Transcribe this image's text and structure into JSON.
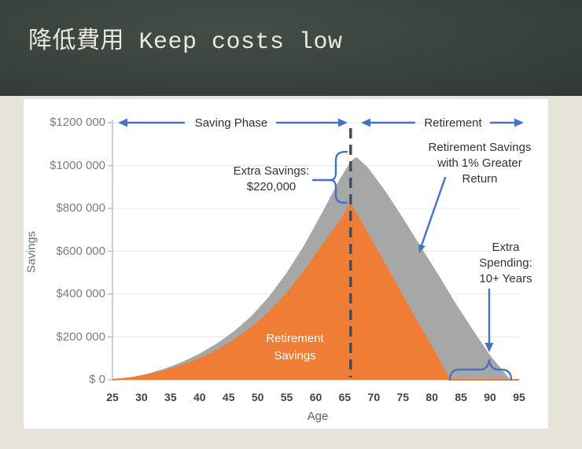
{
  "header": {
    "title": "降低費用 Keep costs low"
  },
  "colors": {
    "header_bg": "#39423C",
    "title_text": "#EBE8DC",
    "slide_bg": "#E7E5D9",
    "panel_bg": "#FFFFFF",
    "orange": "#EF7D35",
    "gray": "#A7A7A7",
    "accent_blue": "#4472C4",
    "dashed_line": "#474B52",
    "axis_blue": "#A8C3E8",
    "grid": "#E8E8E8",
    "x_axis_line": "#D8D8D8",
    "annotation_text": "#2E3338",
    "tick_text_gray": "#7C7C7C",
    "area_label_text": "#FFFFFF"
  },
  "chart_data": {
    "type": "area",
    "title": "",
    "xlabel": "Age",
    "ylabel": "Savings",
    "grid": "horizontal",
    "legend": "none",
    "x": {
      "label": "Age",
      "range": [
        25,
        95
      ],
      "ticks": [
        25,
        30,
        35,
        40,
        45,
        50,
        55,
        60,
        65,
        70,
        75,
        80,
        85,
        90,
        95
      ]
    },
    "y": {
      "label": "Savings",
      "range": [
        0,
        1200000
      ],
      "tick_labels": [
        "$1200 000",
        "$1000 000",
        "$800 000",
        "$600 000",
        "$400 000",
        "$200 000",
        "$ 0"
      ],
      "tick_values": [
        1200000,
        1000000,
        800000,
        600000,
        400000,
        200000,
        0
      ]
    },
    "series": [
      {
        "name": "Retirement Savings with 1% Greater Return",
        "color": "#A7A7A7",
        "points": [
          [
            25,
            0
          ],
          [
            28,
            10000
          ],
          [
            31,
            28000
          ],
          [
            34,
            52000
          ],
          [
            37,
            83000
          ],
          [
            40,
            122000
          ],
          [
            43,
            170000
          ],
          [
            46,
            228000
          ],
          [
            49,
            300000
          ],
          [
            52,
            390000
          ],
          [
            55,
            500000
          ],
          [
            58,
            628000
          ],
          [
            61,
            775000
          ],
          [
            64,
            930000
          ],
          [
            66,
            1020000
          ],
          [
            67,
            1040000
          ],
          [
            69,
            990000
          ],
          [
            72,
            880000
          ],
          [
            75,
            755000
          ],
          [
            78,
            625000
          ],
          [
            81,
            495000
          ],
          [
            84,
            360000
          ],
          [
            87,
            235000
          ],
          [
            90,
            115000
          ],
          [
            93.5,
            0
          ],
          [
            95,
            0
          ]
        ]
      },
      {
        "name": "Retirement Savings",
        "color": "#EF7D35",
        "points": [
          [
            25,
            0
          ],
          [
            28,
            8000
          ],
          [
            31,
            22000
          ],
          [
            34,
            41000
          ],
          [
            37,
            66000
          ],
          [
            40,
            97000
          ],
          [
            43,
            136000
          ],
          [
            46,
            184000
          ],
          [
            49,
            243000
          ],
          [
            52,
            315000
          ],
          [
            55,
            402000
          ],
          [
            58,
            505000
          ],
          [
            61,
            620000
          ],
          [
            64,
            730000
          ],
          [
            66,
            820000
          ],
          [
            68,
            725000
          ],
          [
            71,
            580000
          ],
          [
            74,
            435000
          ],
          [
            77,
            290000
          ],
          [
            80,
            150000
          ],
          [
            83,
            0
          ],
          [
            95,
            0
          ]
        ]
      }
    ],
    "annotations": {
      "divider_age": 66,
      "saving_phase": "Saving Phase",
      "retirement": "Retirement",
      "extra_savings": [
        "Extra Savings:",
        "$220,000"
      ],
      "greater_return": [
        "Retirement Savings",
        "with 1% Greater",
        "Return"
      ],
      "extra_spending": [
        "Extra",
        "Spending:",
        "10+ Years"
      ],
      "area_label": [
        "Retirement",
        "Savings"
      ]
    }
  }
}
